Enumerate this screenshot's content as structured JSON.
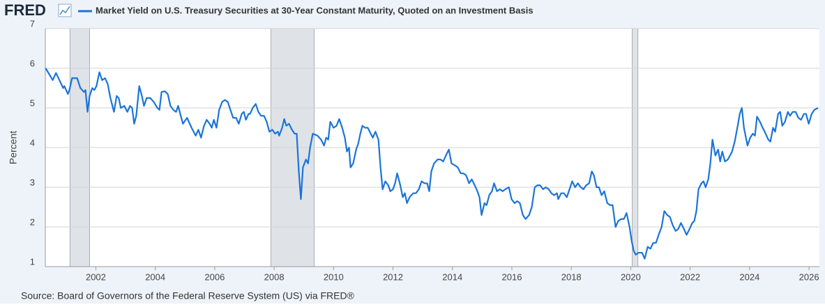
{
  "chart_data": {
    "type": "line",
    "logo": "FRED",
    "ylabel": "Percent",
    "source": "Source: Board of Governors of the Federal Reserve System (US) via FRED®",
    "xlim": [
      2000.3,
      2026.35
    ],
    "xticks": [
      2002,
      2004,
      2006,
      2008,
      2010,
      2012,
      2014,
      2016,
      2018,
      2020,
      2022,
      2024,
      2026
    ],
    "ylim": [
      1,
      7
    ],
    "yticks": [
      1,
      2,
      3,
      4,
      5,
      6,
      7
    ],
    "grid": true,
    "recessions": [
      [
        2001.13,
        2001.79
      ],
      [
        2007.89,
        2009.35
      ],
      [
        2020.05,
        2020.24
      ]
    ],
    "x": [
      2000.31,
      2000.55,
      2000.66,
      2000.9,
      2000.94,
      2001.06,
      2001.11,
      2001.2,
      2001.37,
      2001.48,
      2001.6,
      2001.65,
      2001.72,
      2001.79,
      2001.88,
      2001.95,
      2002.02,
      2002.12,
      2002.21,
      2002.31,
      2002.4,
      2002.49,
      2002.61,
      2002.7,
      2002.77,
      2002.84,
      2002.96,
      2003.06,
      2003.15,
      2003.22,
      2003.29,
      2003.36,
      2003.46,
      2003.55,
      2003.62,
      2003.71,
      2003.83,
      2003.95,
      2004.07,
      2004.14,
      2004.21,
      2004.32,
      2004.42,
      2004.51,
      2004.61,
      2004.7,
      2004.77,
      2004.84,
      2004.93,
      2005.07,
      2005.22,
      2005.36,
      2005.45,
      2005.54,
      2005.64,
      2005.73,
      2005.83,
      2005.9,
      2005.97,
      2006.06,
      2006.15,
      2006.25,
      2006.34,
      2006.44,
      2006.53,
      2006.62,
      2006.72,
      2006.81,
      2006.91,
      2006.98,
      2007.05,
      2007.14,
      2007.19,
      2007.28,
      2007.38,
      2007.47,
      2007.56,
      2007.66,
      2007.75,
      2007.84,
      2007.94,
      2008.03,
      2008.13,
      2008.17,
      2008.27,
      2008.34,
      2008.41,
      2008.5,
      2008.6,
      2008.69,
      2008.76,
      2008.83,
      2008.9,
      2008.97,
      2009.07,
      2009.14,
      2009.21,
      2009.3,
      2009.46,
      2009.58,
      2009.68,
      2009.75,
      2009.82,
      2009.89,
      2010.0,
      2010.1,
      2010.19,
      2010.29,
      2010.38,
      2010.45,
      2010.52,
      2010.57,
      2010.66,
      2010.76,
      2010.83,
      2010.9,
      2010.97,
      2011.06,
      2011.15,
      2011.25,
      2011.32,
      2011.41,
      2011.51,
      2011.58,
      2011.65,
      2011.74,
      2011.84,
      2011.91,
      2012.0,
      2012.07,
      2012.14,
      2012.23,
      2012.33,
      2012.4,
      2012.47,
      2012.56,
      2012.68,
      2012.77,
      2012.87,
      2012.96,
      2013.06,
      2013.15,
      2013.22,
      2013.29,
      2013.38,
      2013.5,
      2013.6,
      2013.69,
      2013.78,
      2013.88,
      2013.97,
      2014.09,
      2014.18,
      2014.28,
      2014.37,
      2014.46,
      2014.56,
      2014.65,
      2014.75,
      2014.84,
      2014.91,
      2014.98,
      2015.08,
      2015.15,
      2015.24,
      2015.33,
      2015.4,
      2015.5,
      2015.59,
      2015.69,
      2015.78,
      2015.9,
      2015.99,
      2016.09,
      2016.18,
      2016.27,
      2016.37,
      2016.46,
      2016.58,
      2016.67,
      2016.77,
      2016.86,
      2016.95,
      2017.05,
      2017.14,
      2017.24,
      2017.33,
      2017.42,
      2017.52,
      2017.56,
      2017.66,
      2017.75,
      2017.85,
      2017.94,
      2018.03,
      2018.13,
      2018.22,
      2018.32,
      2018.41,
      2018.5,
      2018.6,
      2018.69,
      2018.76,
      2018.85,
      2018.93,
      2019.02,
      2019.11,
      2019.21,
      2019.3,
      2019.39,
      2019.49,
      2019.58,
      2019.68,
      2019.77,
      2019.86,
      2019.96,
      2020.03,
      2020.1,
      2020.17,
      2020.26,
      2020.38,
      2020.47,
      2020.57,
      2020.66,
      2020.76,
      2020.85,
      2020.94,
      2021.04,
      2021.13,
      2021.23,
      2021.32,
      2021.41,
      2021.51,
      2021.6,
      2021.69,
      2021.79,
      2021.88,
      2021.98,
      2022.07,
      2022.14,
      2022.21,
      2022.28,
      2022.38,
      2022.45,
      2022.52,
      2022.61,
      2022.68,
      2022.75,
      2022.85,
      2022.94,
      2023.01,
      2023.08,
      2023.17,
      2023.27,
      2023.34,
      2023.41,
      2023.5,
      2023.6,
      2023.67,
      2023.74,
      2023.81,
      2023.93,
      2024.02,
      2024.11,
      2024.18,
      2024.25,
      2024.35,
      2024.44,
      2024.54,
      2024.63,
      2024.7,
      2024.79,
      2024.86,
      2024.96,
      2025.03,
      2025.1,
      2025.19,
      2025.29,
      2025.36,
      2025.45,
      2025.55,
      2025.64,
      2025.73,
      2025.83,
      2025.9,
      2025.99,
      2026.09,
      2026.18,
      2026.3
    ],
    "series": [
      {
        "name": "Market Yield on U.S. Treasury Securities at 30-Year Constant Maturity, Quoted on an Investment Basis",
        "color": "#1a74d9",
        "values": [
          6.0,
          5.7,
          5.88,
          5.5,
          5.55,
          5.35,
          5.45,
          5.75,
          5.75,
          5.5,
          5.4,
          5.45,
          4.9,
          5.3,
          5.5,
          5.45,
          5.55,
          5.9,
          5.7,
          5.75,
          5.6,
          5.25,
          4.9,
          5.3,
          5.25,
          5.0,
          5.05,
          4.9,
          5.05,
          5.0,
          4.6,
          4.8,
          5.55,
          5.3,
          5.05,
          5.25,
          5.25,
          5.15,
          5.0,
          4.95,
          5.4,
          5.42,
          5.35,
          5.05,
          4.95,
          4.9,
          5.05,
          4.85,
          4.6,
          4.75,
          4.5,
          4.3,
          4.45,
          4.25,
          4.55,
          4.7,
          4.6,
          4.5,
          4.7,
          4.5,
          4.95,
          5.15,
          5.2,
          5.15,
          4.95,
          4.75,
          4.75,
          4.6,
          4.85,
          4.9,
          4.7,
          4.85,
          4.85,
          5.0,
          5.1,
          4.9,
          4.8,
          4.8,
          4.65,
          4.4,
          4.45,
          4.35,
          4.4,
          4.3,
          4.5,
          4.72,
          4.55,
          4.6,
          4.45,
          4.35,
          4.35,
          3.4,
          2.7,
          3.5,
          3.7,
          3.6,
          4.0,
          4.35,
          4.3,
          4.2,
          4.05,
          4.25,
          4.2,
          4.65,
          4.5,
          4.55,
          4.72,
          4.5,
          4.25,
          3.9,
          4.0,
          3.5,
          3.6,
          3.95,
          4.1,
          4.35,
          4.55,
          4.5,
          4.5,
          4.35,
          4.25,
          4.4,
          4.2,
          3.5,
          2.95,
          3.15,
          3.05,
          2.9,
          2.95,
          3.1,
          3.35,
          3.1,
          2.75,
          2.85,
          2.6,
          2.75,
          2.85,
          2.85,
          2.95,
          3.15,
          3.1,
          3.1,
          2.9,
          3.4,
          3.6,
          3.7,
          3.7,
          3.65,
          3.8,
          3.95,
          3.6,
          3.55,
          3.5,
          3.35,
          3.35,
          3.3,
          3.1,
          3.2,
          3.05,
          2.9,
          2.75,
          2.3,
          2.6,
          2.55,
          2.8,
          2.9,
          3.1,
          2.9,
          2.95,
          2.9,
          2.95,
          3.0,
          2.7,
          2.6,
          2.65,
          2.6,
          2.3,
          2.2,
          2.3,
          2.5,
          3.0,
          3.05,
          3.05,
          2.95,
          3.0,
          2.95,
          2.85,
          2.8,
          2.85,
          2.7,
          2.85,
          2.85,
          2.75,
          2.95,
          3.15,
          3.0,
          3.1,
          3.0,
          2.95,
          3.05,
          3.1,
          3.4,
          3.3,
          3.0,
          3.0,
          2.8,
          2.9,
          2.6,
          2.55,
          2.55,
          2.0,
          2.15,
          2.2,
          2.2,
          2.35,
          2.0,
          1.65,
          1.4,
          1.3,
          1.35,
          1.35,
          1.2,
          1.5,
          1.45,
          1.6,
          1.6,
          1.8,
          2.0,
          2.4,
          2.3,
          2.25,
          2.05,
          1.9,
          1.95,
          2.1,
          1.95,
          1.8,
          1.95,
          2.1,
          2.15,
          2.4,
          2.95,
          3.1,
          3.15,
          3.0,
          3.2,
          3.6,
          4.2,
          3.8,
          3.95,
          3.65,
          3.9,
          3.65,
          3.7,
          3.8,
          3.9,
          4.15,
          4.55,
          4.85,
          5.0,
          4.5,
          4.05,
          4.25,
          4.35,
          4.3,
          4.78,
          4.65,
          4.5,
          4.35,
          4.2,
          4.15,
          4.5,
          4.4,
          4.85,
          4.9,
          4.55,
          4.65,
          4.9,
          4.8,
          4.9,
          4.9,
          4.75,
          4.7,
          4.85,
          4.85,
          4.6,
          4.85,
          4.95,
          5.0
        ]
      }
    ]
  }
}
